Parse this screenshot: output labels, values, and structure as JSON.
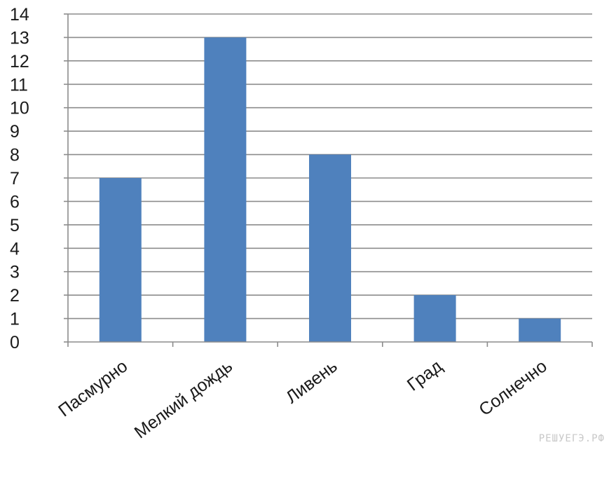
{
  "chart_data": {
    "type": "bar",
    "categories": [
      "Пасмурно",
      "Мелкий дождь",
      "Ливень",
      "Град",
      "Солнечно"
    ],
    "values": [
      7,
      13,
      8,
      2,
      1
    ],
    "ylim": [
      0,
      14
    ],
    "yticks": [
      0,
      1,
      2,
      3,
      4,
      5,
      6,
      7,
      8,
      9,
      10,
      11,
      12,
      13,
      14
    ],
    "grid": true,
    "bar_color": "#4f81bd",
    "grid_color": "#8c8c8c",
    "axis_color": "#8c8c8c"
  },
  "watermark": "РЕШУЕГЭ.РФ"
}
